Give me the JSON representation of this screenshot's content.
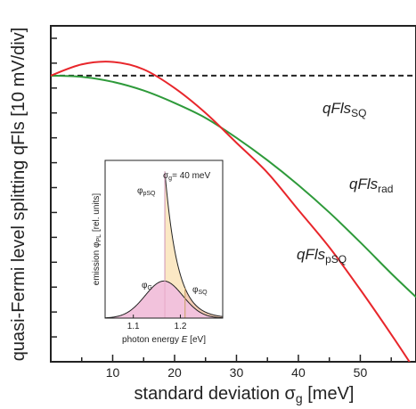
{
  "chart_data": {
    "type": "line",
    "xlabel_main": "standard deviation ",
    "xlabel_sym": "σ",
    "xlabel_sub": "g",
    "xlabel_unit": " [meV]",
    "ylabel": "quasi-Fermi level splitting qFls  [10 mV/div]",
    "x_ticks": [
      10,
      20,
      30,
      40,
      50
    ],
    "xlim": [
      0,
      59
    ],
    "ylim": [
      0,
      13.5
    ],
    "series": [
      {
        "name_main": "qFls",
        "name_sub": "SQ",
        "color": "#222222",
        "dash": true,
        "x": [
          0,
          59
        ],
        "y": [
          11.5,
          11.5
        ]
      },
      {
        "name_main": "qFls",
        "name_sub": "rad",
        "color": "#2e9a3a",
        "x": [
          0,
          5,
          10,
          15,
          20,
          25,
          30,
          35,
          40,
          45,
          50,
          55,
          59
        ],
        "y": [
          11.5,
          11.45,
          11.25,
          10.9,
          10.4,
          9.8,
          9.0,
          8.1,
          7.1,
          6.0,
          4.8,
          3.55,
          2.6
        ]
      },
      {
        "name_main": "qFls",
        "name_sub": "pSQ",
        "color": "#e8262b",
        "x": [
          0,
          5,
          10,
          15,
          20,
          25,
          30,
          35,
          40,
          45,
          50,
          55,
          59
        ],
        "y": [
          11.5,
          11.95,
          12.05,
          11.75,
          11.0,
          10.0,
          8.8,
          7.6,
          6.1,
          4.6,
          2.9,
          1.1,
          -0.4
        ]
      }
    ],
    "inset": {
      "annotation": "σ",
      "annotation_sub": "g",
      "annotation_rest": "= 40 meV",
      "xlabel_main": "photon energy ",
      "xlabel_var": "E",
      "xlabel_unit": " [eV]",
      "ylabel_main": "emission φ",
      "ylabel_sub": "PL",
      "ylabel_unit": "  [rel. units]",
      "x_ticks": [
        1.1,
        1.2
      ],
      "xlim": [
        1.04,
        1.29
      ],
      "ylim": [
        0,
        1.0
      ],
      "label_pSQ_sym": "φ",
      "label_pSQ_sub": "pSQ",
      "label_G_sym": "φ",
      "label_G_sub": "G",
      "label_SQ_sym": "φ",
      "label_SQ_sub": "SQ",
      "gaussian_peak_E": 1.165,
      "gaussian_peak_y": 0.235,
      "gaussian_sigma": 0.04,
      "pSQ_peak_E": 1.167,
      "pSQ_peak_y": 0.93,
      "SQ_cut_E": 1.21,
      "colors": {
        "gauss_fill": "#f2c2dc",
        "pSQ_fill": "#fbe8c4",
        "SQ_fill": "#f4cdb5",
        "gap_line": "#e6a8c8"
      }
    }
  }
}
